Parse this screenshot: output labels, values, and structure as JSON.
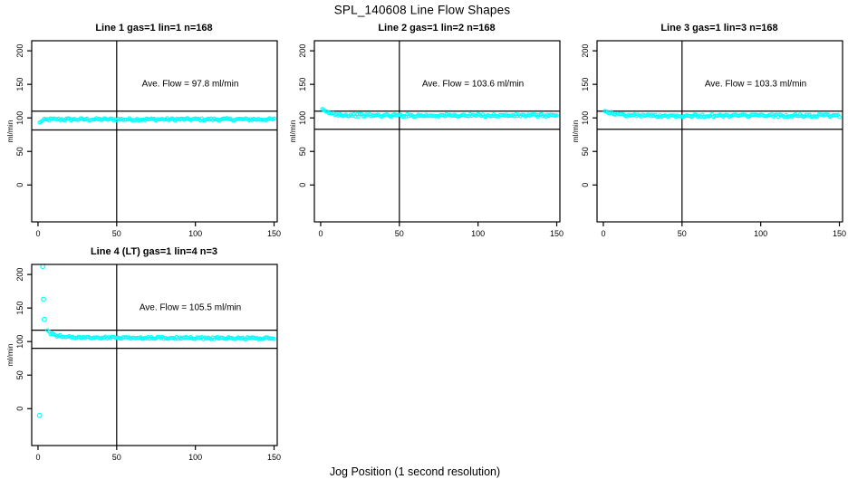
{
  "title": "SPL_140608  Line Flow Shapes",
  "xlabel": "Jog Position (1 second resolution)",
  "ylabel": "ml/min",
  "colors": {
    "points": "#00ffff",
    "lines": "#000000",
    "text": "#000000",
    "background": "#ffffff"
  },
  "axes": {
    "x_ticks": [
      0,
      50,
      100,
      150
    ],
    "y_ticks": [
      0,
      50,
      100,
      150,
      200
    ],
    "x_range": [
      -4,
      152
    ],
    "y_range": [
      -55,
      215
    ],
    "grid": false
  },
  "chart_data": [
    {
      "type": "scatter",
      "title": "Line 1 gas=1 lin=1 n=168",
      "annotation": "Ave. Flow =  97.8  ml/min",
      "ave_flow_ml_min": 97.8,
      "gas": 1,
      "lin": 1,
      "n": 168,
      "ref_lines_h": [
        110,
        82
      ],
      "ref_line_v": 50,
      "x_start": 1,
      "x_end": 150,
      "jitter": 1.8,
      "profile": [
        [
          1,
          92.5
        ],
        [
          2,
          95
        ],
        [
          4,
          97
        ],
        [
          8,
          97.8
        ],
        [
          150,
          97.8
        ]
      ],
      "outliers": []
    },
    {
      "type": "scatter",
      "title": "Line 2 gas=1 lin=2 n=168",
      "annotation": "Ave. Flow =  103.6  ml/min",
      "ave_flow_ml_min": 103.6,
      "gas": 1,
      "lin": 2,
      "n": 168,
      "ref_lines_h": [
        110,
        83
      ],
      "ref_line_v": 50,
      "x_start": 1,
      "x_end": 150,
      "jitter": 2.0,
      "profile": [
        [
          1,
          111.5
        ],
        [
          3,
          109.5
        ],
        [
          6,
          107
        ],
        [
          10,
          105.5
        ],
        [
          16,
          104.3
        ],
        [
          30,
          103.6
        ],
        [
          150,
          103.6
        ]
      ],
      "outliers": []
    },
    {
      "type": "scatter",
      "title": "Line 3 gas=1 lin=3 n=168",
      "annotation": "Ave. Flow =  103.3  ml/min",
      "ave_flow_ml_min": 103.3,
      "gas": 1,
      "lin": 3,
      "n": 168,
      "ref_lines_h": [
        110,
        83
      ],
      "ref_line_v": 50,
      "x_start": 1,
      "x_end": 150,
      "jitter": 2.0,
      "profile": [
        [
          1,
          111.5
        ],
        [
          3,
          109
        ],
        [
          6,
          106.5
        ],
        [
          10,
          104.8
        ],
        [
          16,
          103.8
        ],
        [
          30,
          103.3
        ],
        [
          150,
          103.3
        ]
      ],
      "outliers": []
    },
    {
      "type": "scatter",
      "title": "Line 4 (LT) gas=1 lin=4 n=3",
      "annotation": "Ave. Flow =  105.5  ml/min",
      "ave_flow_ml_min": 105.5,
      "gas": 1,
      "lin": 4,
      "n": 3,
      "ref_lines_h": [
        117,
        90
      ],
      "ref_line_v": 50,
      "x_start": 6,
      "x_end": 150,
      "jitter": 1.6,
      "profile": [
        [
          6,
          117
        ],
        [
          7,
          114
        ],
        [
          9,
          111
        ],
        [
          12,
          109
        ],
        [
          16,
          107.5
        ],
        [
          25,
          106.3
        ],
        [
          50,
          105.7
        ],
        [
          100,
          105.2
        ],
        [
          150,
          104.8
        ]
      ],
      "outliers": [
        [
          1,
          -10
        ],
        [
          3,
          212
        ],
        [
          3.5,
          163
        ],
        [
          4,
          133
        ]
      ]
    }
  ]
}
